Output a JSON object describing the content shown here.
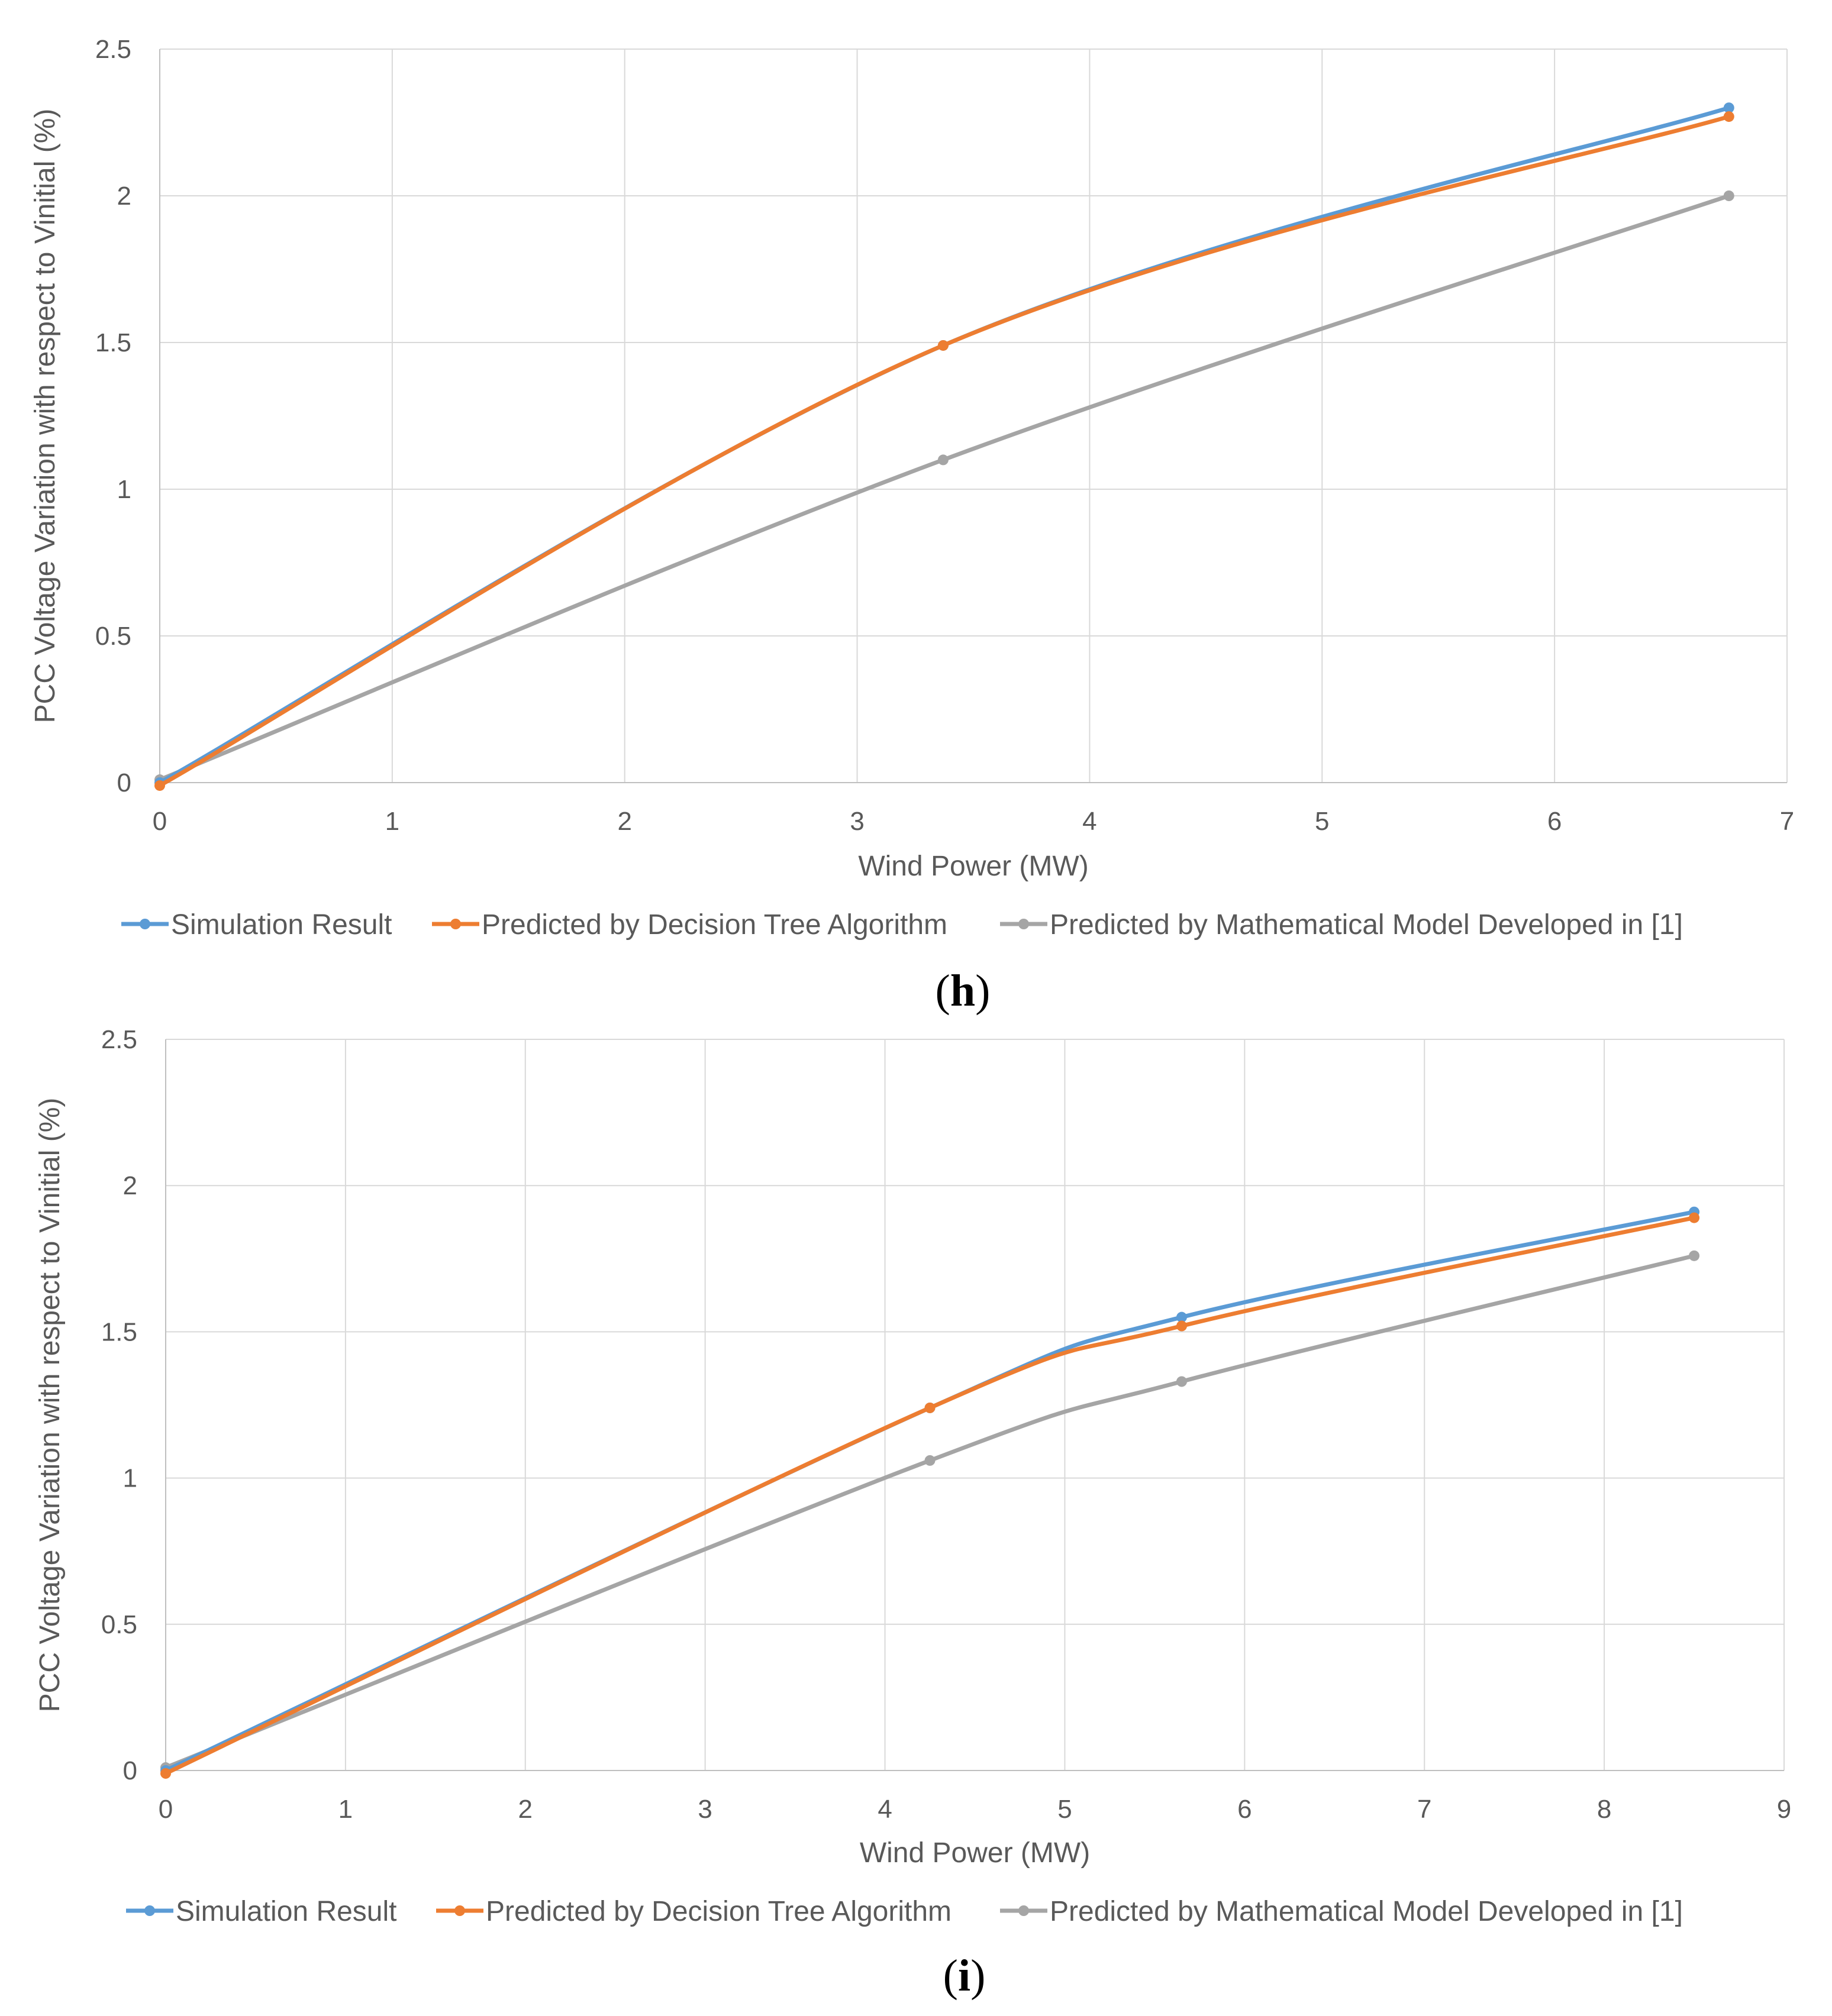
{
  "colors": {
    "simulation": "#5B9BD5",
    "decision_tree": "#ED7D31",
    "math_model": "#A5A5A5",
    "grid": "#D9D9D9",
    "text": "#595959"
  },
  "chart_data": [
    {
      "panel": "h",
      "type": "line",
      "xlabel": "Wind Power (MW)",
      "ylabel": "PCC Voltage Variation with respect to Vinitial (%)",
      "xlim": [
        0,
        7
      ],
      "ylim": [
        0,
        2.5
      ],
      "xticks": [
        "0",
        "1",
        "2",
        "3",
        "4",
        "5",
        "6",
        "7"
      ],
      "yticks": [
        "0",
        "0.5",
        "1",
        "1.5",
        "2",
        "2.5"
      ],
      "legend_position": "bottom",
      "series": [
        {
          "name": "Simulation Result",
          "color": "#5B9BD5",
          "x": [
            0,
            3.37,
            6.75
          ],
          "y": [
            0,
            1.49,
            2.3
          ]
        },
        {
          "name": "Predicted by Decision Tree Algorithm",
          "color": "#ED7D31",
          "x": [
            0,
            3.37,
            6.75
          ],
          "y": [
            -0.01,
            1.49,
            2.27
          ]
        },
        {
          "name": "Predicted by Mathematical Model Developed in [1]",
          "color": "#A5A5A5",
          "x": [
            0,
            3.37,
            6.75
          ],
          "y": [
            0.01,
            1.1,
            2.0
          ]
        }
      ]
    },
    {
      "panel": "i",
      "type": "line",
      "xlabel": "Wind Power (MW)",
      "ylabel": "PCC Voltage Variation with respect to Vinitial (%)",
      "xlim": [
        0,
        9
      ],
      "ylim": [
        0,
        2.5
      ],
      "xticks": [
        "0",
        "1",
        "2",
        "3",
        "4",
        "5",
        "6",
        "7",
        "8",
        "9"
      ],
      "yticks": [
        "0",
        "0.5",
        "1",
        "1.5",
        "2",
        "2.5"
      ],
      "legend_position": "bottom",
      "series": [
        {
          "name": "Simulation Result",
          "color": "#5B9BD5",
          "x": [
            0,
            4.25,
            5.65,
            8.5
          ],
          "y": [
            0,
            1.24,
            1.55,
            1.91
          ]
        },
        {
          "name": "Predicted by Decision Tree Algorithm",
          "color": "#ED7D31",
          "x": [
            0,
            4.25,
            5.65,
            8.5
          ],
          "y": [
            -0.01,
            1.24,
            1.52,
            1.89
          ]
        },
        {
          "name": "Predicted by Mathematical Model Developed in [1]",
          "color": "#A5A5A5",
          "x": [
            0,
            4.25,
            5.65,
            8.5
          ],
          "y": [
            0.01,
            1.06,
            1.33,
            1.76
          ]
        }
      ]
    }
  ]
}
